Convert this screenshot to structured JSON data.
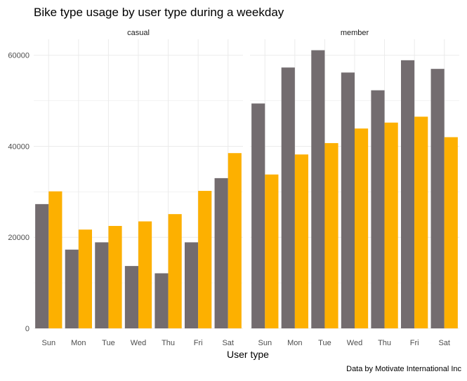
{
  "chart_data": {
    "type": "bar",
    "title": "Bike type usage by user type during a weekday",
    "xlabel": "User type",
    "ylabel": "",
    "caption": "Data by Motivate International Inc",
    "categories": [
      "Sun",
      "Mon",
      "Tue",
      "Wed",
      "Thu",
      "Fri",
      "Sat"
    ],
    "ylim": [
      0,
      63500
    ],
    "yticks": [
      0,
      20000,
      40000,
      60000
    ],
    "ytick_labels": [
      "0",
      "20000",
      "40000",
      "60000"
    ],
    "grid": true,
    "legend": "none",
    "colors": {
      "series_1": "#736c6f",
      "series_2": "#fdb000",
      "grid": "#ebebeb",
      "text": "#4d4d4d",
      "title": "#000000"
    },
    "facets": [
      {
        "label": "casual",
        "series": [
          {
            "values": [
              27300,
              17300,
              18900,
              13700,
              12100,
              18900,
              33000
            ]
          },
          {
            "values": [
              30100,
              21700,
              22500,
              23500,
              25100,
              30200,
              38500
            ]
          }
        ]
      },
      {
        "label": "member",
        "series": [
          {
            "values": [
              49400,
              57300,
              61100,
              56200,
              52300,
              58900,
              57000
            ]
          },
          {
            "values": [
              33800,
              38200,
              40700,
              43900,
              45200,
              46500,
              42000
            ]
          }
        ]
      }
    ]
  }
}
